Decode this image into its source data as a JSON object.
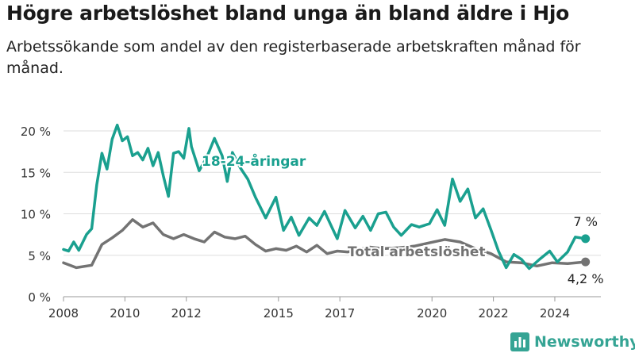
{
  "title": "Högre arbetslöshet bland unga än bland äldre i Hjo",
  "subtitle": "Arbetssökande som andel av den registerbaserade arbetskraften månad för månad.",
  "logo": {
    "text": "Newsworthy",
    "icon": "newsworthy-bar-chart-logo"
  },
  "colors": {
    "youth": "#1aa08f",
    "total": "#737373",
    "axis": "#999999",
    "grid": "#dddddd",
    "tick_text": "#333333"
  },
  "chart_data": {
    "type": "line",
    "title": "",
    "xlabel": "",
    "ylabel": "",
    "xlim": [
      "2008-01",
      "2025-07"
    ],
    "ylim": [
      0,
      20
    ],
    "y_ticks": [
      0,
      5,
      10,
      15,
      20
    ],
    "y_tick_labels": [
      "0 %",
      "5 %",
      "10 %",
      "15 %",
      "20 %"
    ],
    "x_ticks": [
      "2008-01",
      "2010-01",
      "2012-01",
      "2015-01",
      "2017-01",
      "2020-01",
      "2022-01",
      "2024-01"
    ],
    "x_tick_labels": [
      "2008",
      "2010",
      "2012",
      "2015",
      "2017",
      "2020",
      "2022",
      "2024"
    ],
    "grid": "horizontal",
    "legend": "none",
    "series": [
      {
        "name": "18-24-åringar",
        "end_label": "7 %",
        "points": [
          [
            "2008-01",
            5.7
          ],
          [
            "2008-03",
            5.5
          ],
          [
            "2008-05",
            6.6
          ],
          [
            "2008-07",
            5.6
          ],
          [
            "2008-10",
            7.5
          ],
          [
            "2008-12",
            8.2
          ],
          [
            "2009-02",
            13.5
          ],
          [
            "2009-04",
            17.3
          ],
          [
            "2009-06",
            15.4
          ],
          [
            "2009-08",
            19.0
          ],
          [
            "2009-10",
            20.7
          ],
          [
            "2009-12",
            18.8
          ],
          [
            "2010-02",
            19.3
          ],
          [
            "2010-04",
            17.0
          ],
          [
            "2010-06",
            17.4
          ],
          [
            "2010-08",
            16.5
          ],
          [
            "2010-10",
            17.9
          ],
          [
            "2010-12",
            15.8
          ],
          [
            "2011-02",
            17.4
          ],
          [
            "2011-04",
            14.6
          ],
          [
            "2011-06",
            12.1
          ],
          [
            "2011-08",
            17.3
          ],
          [
            "2011-10",
            17.5
          ],
          [
            "2011-12",
            16.7
          ],
          [
            "2012-02",
            20.3
          ],
          [
            "2012-03",
            18.1
          ],
          [
            "2012-06",
            15.2
          ],
          [
            "2012-09",
            16.8
          ],
          [
            "2012-12",
            19.1
          ],
          [
            "2013-03",
            17.0
          ],
          [
            "2013-05",
            13.9
          ],
          [
            "2013-07",
            17.4
          ],
          [
            "2013-10",
            15.6
          ],
          [
            "2014-01",
            14.2
          ],
          [
            "2014-04",
            12.0
          ],
          [
            "2014-08",
            9.5
          ],
          [
            "2014-12",
            12.0
          ],
          [
            "2015-03",
            8.0
          ],
          [
            "2015-06",
            9.6
          ],
          [
            "2015-09",
            7.4
          ],
          [
            "2016-01",
            9.5
          ],
          [
            "2016-04",
            8.6
          ],
          [
            "2016-07",
            10.3
          ],
          [
            "2016-10",
            8.3
          ],
          [
            "2016-12",
            7.0
          ],
          [
            "2017-03",
            10.4
          ],
          [
            "2017-07",
            8.3
          ],
          [
            "2017-10",
            9.7
          ],
          [
            "2018-01",
            8.0
          ],
          [
            "2018-04",
            10.0
          ],
          [
            "2018-07",
            10.2
          ],
          [
            "2018-10",
            8.4
          ],
          [
            "2019-01",
            7.4
          ],
          [
            "2019-05",
            8.7
          ],
          [
            "2019-08",
            8.4
          ],
          [
            "2019-12",
            8.8
          ],
          [
            "2020-03",
            10.5
          ],
          [
            "2020-06",
            8.6
          ],
          [
            "2020-09",
            14.2
          ],
          [
            "2020-12",
            11.5
          ],
          [
            "2021-03",
            13.0
          ],
          [
            "2021-06",
            9.5
          ],
          [
            "2021-09",
            10.6
          ],
          [
            "2021-12",
            8.1
          ],
          [
            "2022-03",
            5.5
          ],
          [
            "2022-06",
            3.5
          ],
          [
            "2022-09",
            5.1
          ],
          [
            "2022-12",
            4.5
          ],
          [
            "2023-03",
            3.4
          ],
          [
            "2023-07",
            4.5
          ],
          [
            "2023-11",
            5.5
          ],
          [
            "2024-02",
            4.2
          ],
          [
            "2024-06",
            5.4
          ],
          [
            "2024-09",
            7.2
          ],
          [
            "2025-01",
            7.0
          ]
        ]
      },
      {
        "name": "Total arbetslöshet",
        "end_label": "4,2 %",
        "points": [
          [
            "2008-01",
            4.1
          ],
          [
            "2008-06",
            3.5
          ],
          [
            "2008-12",
            3.8
          ],
          [
            "2009-04",
            6.3
          ],
          [
            "2009-08",
            7.1
          ],
          [
            "2009-12",
            8.0
          ],
          [
            "2010-04",
            9.3
          ],
          [
            "2010-08",
            8.4
          ],
          [
            "2010-12",
            8.9
          ],
          [
            "2011-04",
            7.5
          ],
          [
            "2011-08",
            7.0
          ],
          [
            "2011-12",
            7.5
          ],
          [
            "2012-04",
            7.0
          ],
          [
            "2012-08",
            6.6
          ],
          [
            "2012-12",
            7.8
          ],
          [
            "2013-04",
            7.2
          ],
          [
            "2013-08",
            7.0
          ],
          [
            "2013-12",
            7.3
          ],
          [
            "2014-04",
            6.3
          ],
          [
            "2014-08",
            5.5
          ],
          [
            "2014-12",
            5.8
          ],
          [
            "2015-04",
            5.6
          ],
          [
            "2015-08",
            6.1
          ],
          [
            "2015-12",
            5.4
          ],
          [
            "2016-04",
            6.2
          ],
          [
            "2016-08",
            5.2
          ],
          [
            "2016-12",
            5.5
          ],
          [
            "2017-04",
            5.4
          ],
          [
            "2017-08",
            5.6
          ],
          [
            "2017-12",
            6.0
          ],
          [
            "2018-06",
            5.8
          ],
          [
            "2018-12",
            5.9
          ],
          [
            "2019-06",
            6.1
          ],
          [
            "2019-12",
            6.5
          ],
          [
            "2020-06",
            6.9
          ],
          [
            "2020-12",
            6.6
          ],
          [
            "2021-06",
            5.8
          ],
          [
            "2021-12",
            5.2
          ],
          [
            "2022-06",
            4.2
          ],
          [
            "2022-12",
            4.1
          ],
          [
            "2023-06",
            3.7
          ],
          [
            "2023-12",
            4.1
          ],
          [
            "2024-06",
            4.0
          ],
          [
            "2025-01",
            4.2
          ]
        ]
      }
    ]
  }
}
